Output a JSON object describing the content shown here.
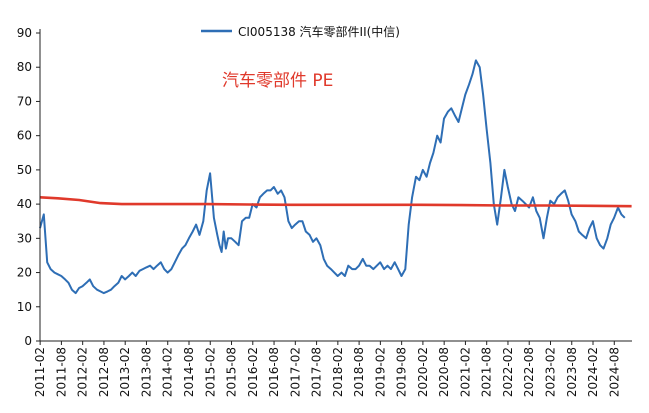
{
  "chart_data": {
    "type": "line",
    "legend_position": "top-center",
    "annotation": "汽车零部件 PE",
    "annotation_color": "#e0392b",
    "ylim": [
      0,
      90
    ],
    "yticks": [
      "0",
      "10",
      "20",
      "30",
      "40",
      "50",
      "60",
      "70",
      "80",
      "90"
    ],
    "xticks": [
      "2011-02",
      "2011-08",
      "2012-02",
      "2012-08",
      "2013-02",
      "2013-08",
      "2014-02",
      "2014-08",
      "2015-02",
      "2015-08",
      "2016-02",
      "2016-08",
      "2017-02",
      "2017-08",
      "2018-02",
      "2018-08",
      "2019-02",
      "2019-08",
      "2020-02",
      "2020-08",
      "2021-02",
      "2021-08",
      "2022-02",
      "2022-08",
      "2023-02",
      "2023-08",
      "2024-02",
      "2024-08"
    ],
    "grid": false,
    "series": [
      {
        "name": "CI005138 汽车零部件II(中信)",
        "color": "#2e6eb5",
        "x": [
          2011.08,
          2011.17,
          2011.25,
          2011.33,
          2011.42,
          2011.5,
          2011.58,
          2011.67,
          2011.75,
          2011.83,
          2011.92,
          2012.0,
          2012.08,
          2012.17,
          2012.25,
          2012.33,
          2012.42,
          2012.5,
          2012.58,
          2012.67,
          2012.75,
          2012.83,
          2012.92,
          2013.0,
          2013.08,
          2013.17,
          2013.25,
          2013.33,
          2013.42,
          2013.5,
          2013.58,
          2013.67,
          2013.75,
          2013.83,
          2013.92,
          2014.0,
          2014.08,
          2014.17,
          2014.25,
          2014.33,
          2014.42,
          2014.5,
          2014.58,
          2014.67,
          2014.75,
          2014.83,
          2014.92,
          2015.0,
          2015.08,
          2015.17,
          2015.25,
          2015.3,
          2015.35,
          2015.4,
          2015.45,
          2015.5,
          2015.58,
          2015.67,
          2015.75,
          2015.83,
          2015.92,
          2016.0,
          2016.08,
          2016.17,
          2016.25,
          2016.33,
          2016.42,
          2016.5,
          2016.58,
          2016.67,
          2016.75,
          2016.83,
          2016.92,
          2017.0,
          2017.08,
          2017.17,
          2017.25,
          2017.33,
          2017.42,
          2017.5,
          2017.58,
          2017.67,
          2017.75,
          2017.83,
          2017.92,
          2018.0,
          2018.08,
          2018.17,
          2018.25,
          2018.33,
          2018.42,
          2018.5,
          2018.58,
          2018.67,
          2018.75,
          2018.83,
          2018.92,
          2019.0,
          2019.08,
          2019.17,
          2019.25,
          2019.33,
          2019.42,
          2019.5,
          2019.58,
          2019.67,
          2019.75,
          2019.83,
          2019.92,
          2020.0,
          2020.08,
          2020.17,
          2020.25,
          2020.33,
          2020.42,
          2020.5,
          2020.58,
          2020.67,
          2020.75,
          2020.83,
          2020.92,
          2021.0,
          2021.08,
          2021.17,
          2021.25,
          2021.33,
          2021.42,
          2021.5,
          2021.58,
          2021.67,
          2021.75,
          2021.83,
          2021.92,
          2022.0,
          2022.08,
          2022.17,
          2022.25,
          2022.33,
          2022.42,
          2022.5,
          2022.58,
          2022.67,
          2022.75,
          2022.83,
          2022.92,
          2023.0,
          2023.08,
          2023.17,
          2023.25,
          2023.33,
          2023.42,
          2023.5,
          2023.58,
          2023.67,
          2023.75,
          2023.83,
          2023.92,
          2024.0,
          2024.08,
          2024.17,
          2024.25,
          2024.33,
          2024.42,
          2024.5,
          2024.58,
          2024.67,
          2024.75,
          2024.83
        ],
        "values": [
          33,
          37,
          23,
          21,
          20,
          19.5,
          19,
          18,
          17,
          15,
          14,
          15.5,
          16,
          17,
          18,
          16,
          15,
          14.5,
          14,
          14.5,
          15,
          16,
          17,
          19,
          18,
          19,
          20,
          19,
          20.5,
          21,
          21.5,
          22,
          21,
          22,
          23,
          21,
          20,
          21,
          23,
          25,
          27,
          28,
          30,
          32,
          34,
          31,
          35,
          44,
          49,
          36,
          31,
          28,
          26,
          32,
          27,
          30,
          30,
          29,
          28,
          35,
          36,
          36,
          40,
          39,
          42,
          43,
          44,
          44,
          45,
          43,
          44,
          42,
          35,
          33,
          34,
          35,
          35,
          32,
          31,
          29,
          30,
          28,
          24,
          22,
          21,
          20,
          19,
          20,
          19,
          22,
          21,
          21,
          22,
          24,
          22,
          22,
          21,
          22,
          23,
          21,
          22,
          21,
          23,
          21,
          19,
          21,
          34,
          42,
          48,
          47,
          50,
          48,
          52,
          55,
          60,
          58,
          65,
          67,
          68,
          66,
          64,
          68,
          72,
          75,
          78,
          82,
          80,
          72,
          62,
          52,
          40,
          34,
          42,
          50,
          45,
          40,
          38,
          42,
          41,
          40,
          39,
          42,
          38,
          36,
          30,
          36,
          41,
          40,
          42,
          43,
          44,
          41,
          37,
          35,
          32,
          31,
          30,
          33,
          35,
          30,
          28,
          27,
          30,
          34,
          36,
          39,
          37,
          36
        ]
      },
      {
        "name": "PE",
        "color": "#e0392b",
        "x": [
          2011.08,
          2011.5,
          2012.0,
          2012.5,
          2013.0,
          2014.0,
          2015.0,
          2016.0,
          2017.0,
          2018.0,
          2019.0,
          2020.0,
          2021.0,
          2022.0,
          2023.0,
          2024.0,
          2024.99
        ],
        "values": [
          42,
          41.7,
          41.2,
          40.3,
          40.0,
          40.0,
          40.0,
          39.9,
          39.8,
          39.8,
          39.8,
          39.8,
          39.7,
          39.6,
          39.6,
          39.5,
          39.4
        ]
      }
    ]
  }
}
